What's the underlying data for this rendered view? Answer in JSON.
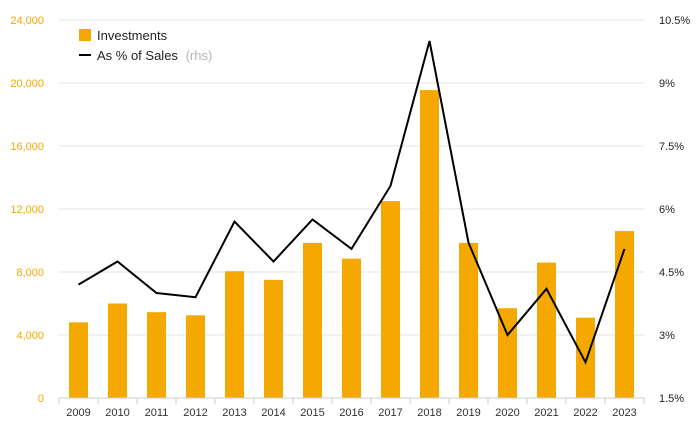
{
  "chart_data": {
    "type": "bar",
    "categories": [
      "2009",
      "2010",
      "2011",
      "2012",
      "2013",
      "2014",
      "2015",
      "2016",
      "2017",
      "2018",
      "2019",
      "2020",
      "2021",
      "2022",
      "2023"
    ],
    "series": [
      {
        "name": "Investments",
        "type": "bar",
        "axis": "left",
        "color": "#f5a800",
        "values": [
          4800,
          6000,
          5450,
          5250,
          8050,
          7500,
          9850,
          8850,
          12500,
          19550,
          9850,
          5700,
          8600,
          5100,
          10600
        ]
      },
      {
        "name": "As % of Sales",
        "name_suffix": "(rhs)",
        "type": "line",
        "axis": "right",
        "color": "#000000",
        "values": [
          4.2,
          4.75,
          4.0,
          3.9,
          5.7,
          4.75,
          5.75,
          5.05,
          6.55,
          10.0,
          5.2,
          3.0,
          4.1,
          2.35,
          5.05
        ]
      }
    ],
    "y_left": {
      "ylim": [
        0,
        24000
      ],
      "ticks": [
        0,
        4000,
        8000,
        12000,
        16000,
        20000,
        24000
      ],
      "tick_labels": [
        "0",
        "4,000",
        "8,000",
        "12,000",
        "16,000",
        "20,000",
        "24,000"
      ],
      "color": "#f5a800"
    },
    "y_right": {
      "ylim": [
        1.5,
        10.5
      ],
      "ticks": [
        1.5,
        3,
        4.5,
        6,
        7.5,
        9,
        10.5
      ],
      "tick_labels": [
        "1.5%",
        "3%",
        "4.5%",
        "6%",
        "7.5%",
        "9%",
        "10.5%"
      ]
    },
    "grid": true,
    "legend_position": "top-left"
  }
}
